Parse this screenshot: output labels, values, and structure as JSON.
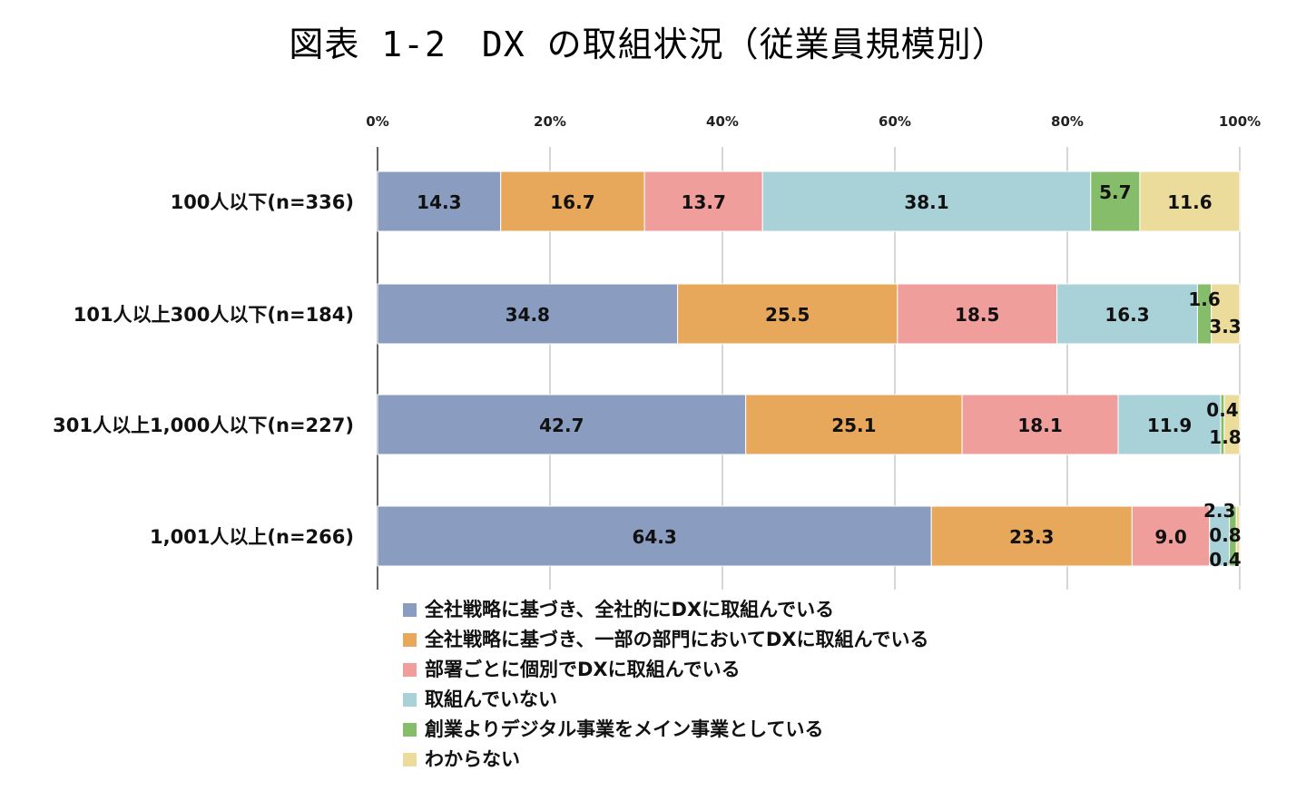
{
  "title": "図表 1-2　DX の取組状況（従業員規模別）",
  "chart_data": {
    "type": "bar",
    "orientation": "horizontal",
    "stacked": true,
    "title": "図表 1-2　DX の取組状況（従業員規模別）",
    "xlim": [
      0,
      100
    ],
    "x_ticks": [
      "0%",
      "20%",
      "40%",
      "60%",
      "80%",
      "100%"
    ],
    "grid": true,
    "legend_position": "bottom",
    "categories": [
      "100人以下(n=336)",
      "101人以上300人以下(n=184)",
      "301人以上1,000人以下(n=227)",
      "1,001人以上(n=266)"
    ],
    "series": [
      {
        "name": "全社戦略に基づき、全社的にDXに取組んでいる",
        "color": "#8a9cbf",
        "values": [
          14.3,
          34.8,
          42.7,
          64.3
        ],
        "labels": [
          "14.3",
          "34.8",
          "42.7",
          "64.3"
        ]
      },
      {
        "name": "全社戦略に基づき、一部の部門においてDXに取組んでいる",
        "color": "#e8a85c",
        "values": [
          16.7,
          25.5,
          25.1,
          23.3
        ],
        "labels": [
          "16.7",
          "25.5",
          "25.1",
          "23.3"
        ]
      },
      {
        "name": "部署ごとに個別でDXに取組んでいる",
        "color": "#f09e9c",
        "values": [
          13.7,
          18.5,
          18.1,
          9.0
        ],
        "labels": [
          "13.7",
          "18.5",
          "18.1",
          "9.0"
        ]
      },
      {
        "name": "取組んでいない",
        "color": "#a8d1d8",
        "values": [
          38.1,
          16.3,
          11.9,
          2.3
        ],
        "labels": [
          "38.1",
          "16.3",
          "11.9",
          "2.3"
        ]
      },
      {
        "name": "創業よりデジタル事業をメイン事業としている",
        "color": "#86bd6a",
        "values": [
          5.7,
          1.6,
          0.4,
          0.8
        ],
        "labels": [
          "5.7",
          "1.6",
          "0.4",
          "0.8"
        ]
      },
      {
        "name": "わからない",
        "color": "#ecdc9c",
        "values": [
          11.6,
          3.3,
          1.8,
          0.4
        ],
        "labels": [
          "11.6",
          "3.3",
          "1.8",
          "0.4"
        ]
      }
    ]
  }
}
